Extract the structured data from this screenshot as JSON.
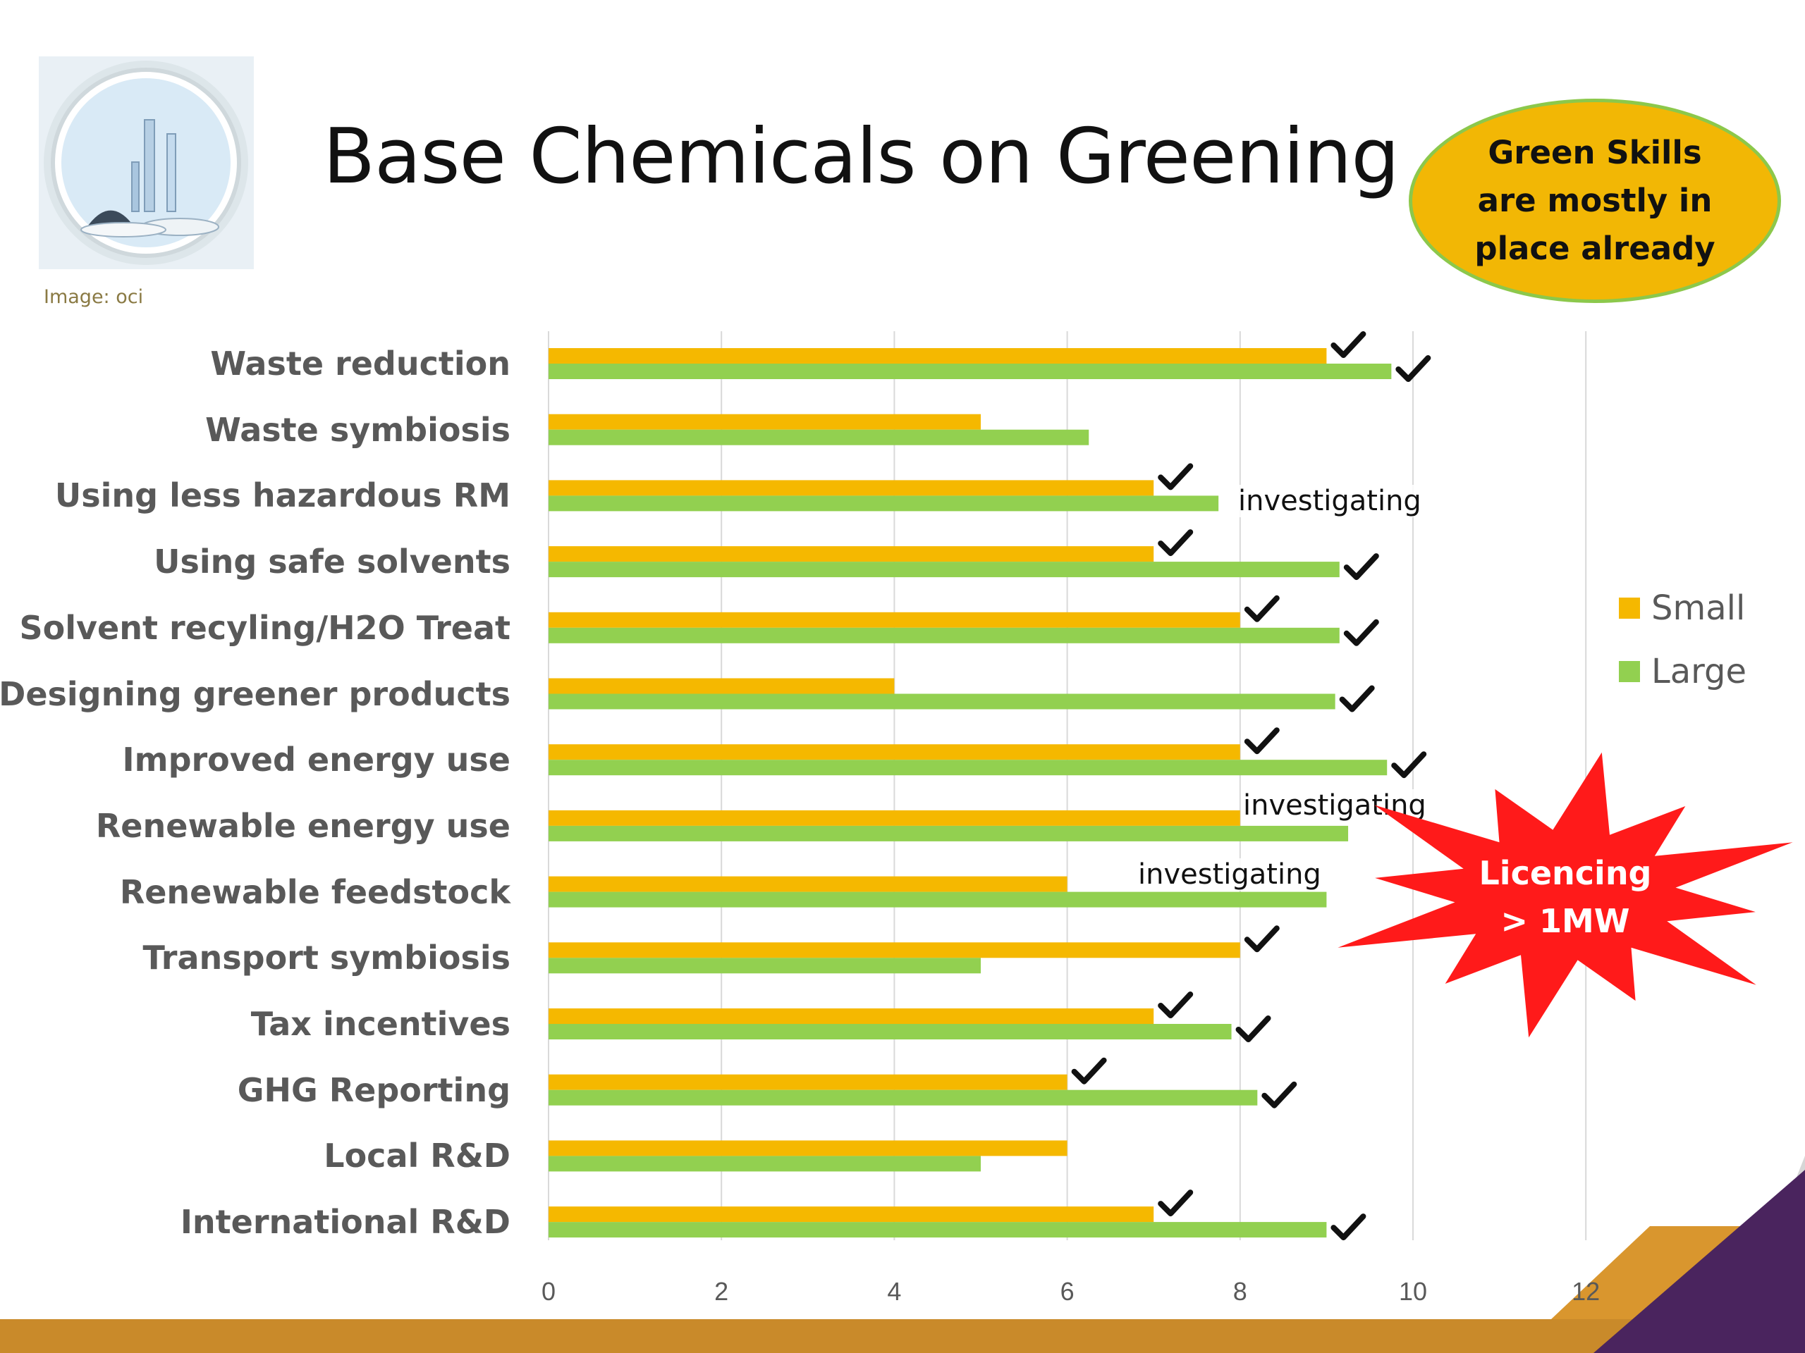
{
  "slide": {
    "title": "Base Chemicals on Greening",
    "image_credit": "Image: oci",
    "callout": "Green Skills are mostly in place already",
    "burst_line1": "Licencing",
    "burst_line2": ">  1MW"
  },
  "colors": {
    "small": "#f5b800",
    "large": "#92d050",
    "grid": "#d9d9d9",
    "burst": "#ff1a1a",
    "footer_orange": "#c98a2a",
    "footer_purple": "#4a245e"
  },
  "chart_data": {
    "type": "bar",
    "orientation": "horizontal",
    "categories": [
      "Waste reduction",
      "Waste symbiosis",
      "Using less hazardous RM",
      "Using safe solvents",
      "Solvent recyling/H2O Treat",
      "Designing greener products",
      "Improved energy use",
      "Renewable energy use",
      "Renewable feedstock",
      "Transport symbiosis",
      "Tax incentives",
      "GHG Reporting",
      "Local R&D",
      "International R&D"
    ],
    "series": [
      {
        "name": "Small",
        "values": [
          9,
          5,
          7,
          7,
          8,
          4,
          8,
          8,
          6,
          8,
          7,
          6,
          6,
          7
        ]
      },
      {
        "name": "Large",
        "values": [
          9.75,
          6.25,
          7.75,
          9.15,
          9.15,
          9.1,
          9.7,
          9.25,
          9,
          5,
          7.9,
          8.2,
          5,
          9
        ]
      }
    ],
    "xlim": [
      0,
      12
    ],
    "x_ticks": [
      "0",
      "2",
      "4",
      "6",
      "8",
      "10",
      "12"
    ],
    "grid": true,
    "legend_position": "right",
    "checkmarks": {
      "Small": [
        true,
        false,
        true,
        true,
        true,
        false,
        true,
        false,
        false,
        true,
        true,
        true,
        false,
        true
      ],
      "Large": [
        true,
        false,
        false,
        true,
        true,
        true,
        true,
        false,
        false,
        false,
        true,
        true,
        false,
        true
      ]
    },
    "annotations": [
      {
        "category_index": 2,
        "text": "investigating"
      },
      {
        "category_index": 7,
        "text": "investigating"
      },
      {
        "category_index": 8,
        "text": "investigating"
      }
    ]
  }
}
